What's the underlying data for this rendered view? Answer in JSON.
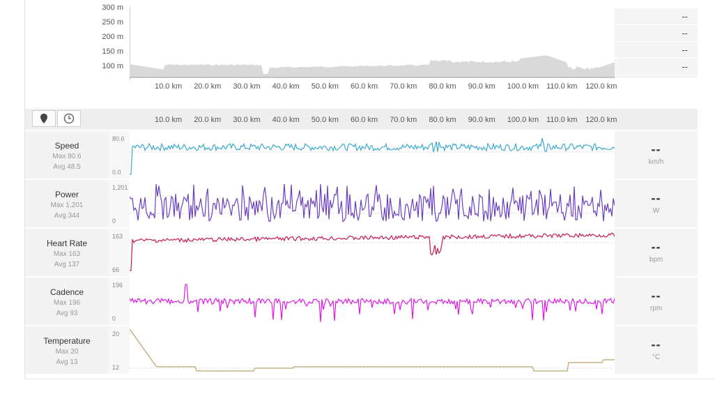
{
  "elevation": {
    "y_ticks": [
      "300 m",
      "250 m",
      "200 m",
      "150 m",
      "100 m"
    ],
    "panel_values": [
      "--",
      "--",
      "--",
      "--"
    ]
  },
  "distance_ticks": [
    "10.0 km",
    "20.0 km",
    "30.0 km",
    "40.0 km",
    "50.0 km",
    "60.0 km",
    "70.0 km",
    "80.0 km",
    "90.0 km",
    "100.0 km",
    "110.0 km",
    "120.0 km"
  ],
  "toolbar": {
    "buttons": [
      "map-pin",
      "clock"
    ]
  },
  "colors": {
    "speed": "#3aa9cf",
    "power": "#6a3ec4",
    "heart_rate": "#c8194f",
    "cadence": "#e019e8",
    "temperature": "#b8a36a",
    "elevation_fill": "#d9d9d9"
  },
  "metrics": [
    {
      "name": "Speed",
      "max": "Max 80.6",
      "avg": "Avg 48.5",
      "y_top": "80.6",
      "y_bottom": "0.0",
      "value": "--",
      "unit": "km/h"
    },
    {
      "name": "Power",
      "max": "Max 1,201",
      "avg": "Avg 344",
      "y_top": "1,201",
      "y_bottom": "0",
      "value": "--",
      "unit": "W"
    },
    {
      "name": "Heart Rate",
      "max": "Max 163",
      "avg": "Avg 137",
      "y_top": "163",
      "y_bottom": "66",
      "value": "--",
      "unit": "bpm"
    },
    {
      "name": "Cadence",
      "max": "Max 196",
      "avg": "Avg 93",
      "y_top": "196",
      "y_bottom": "0",
      "value": "--",
      "unit": "rpm"
    },
    {
      "name": "Temperature",
      "max": "Max 20",
      "avg": "Avg 13",
      "y_top": "20",
      "y_bottom": "12",
      "value": "--",
      "unit": "°C"
    }
  ]
}
